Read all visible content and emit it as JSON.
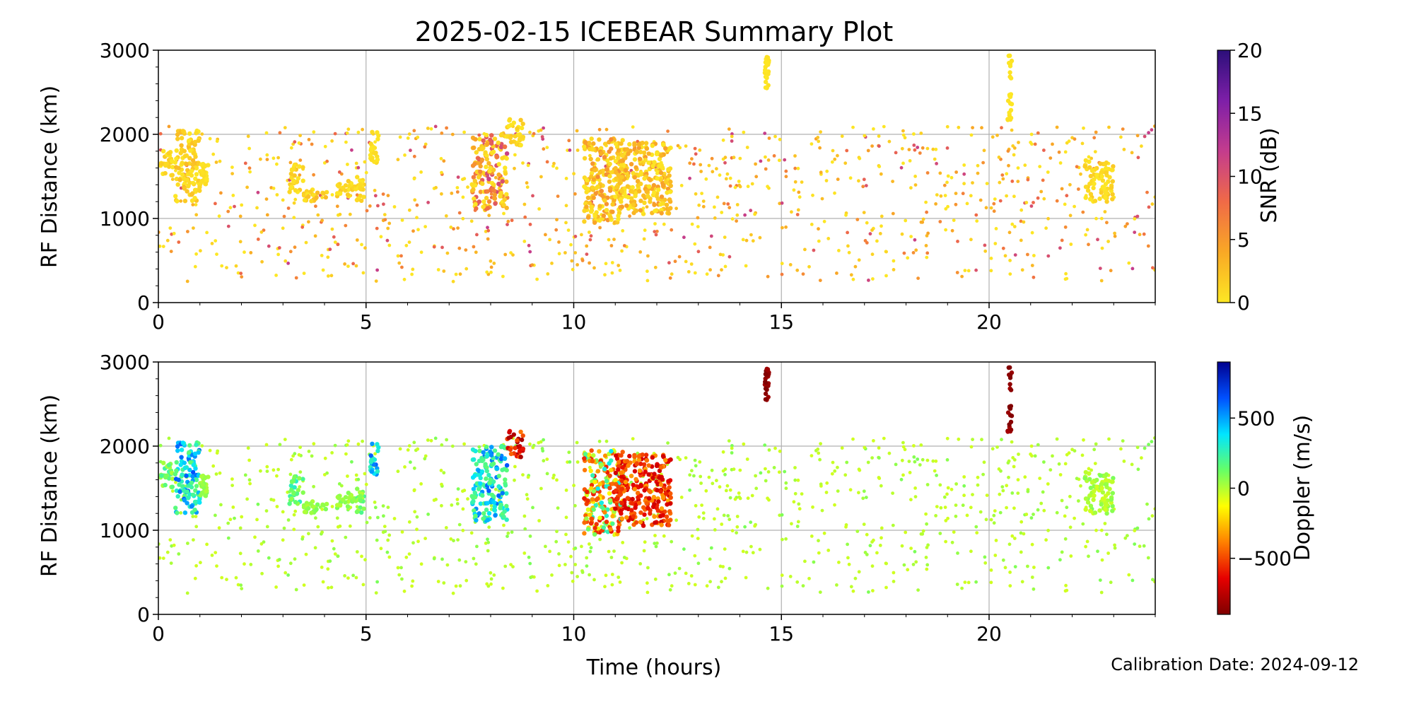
{
  "figure": {
    "title": "2025-02-15 ICEBEAR Summary Plot",
    "xlabel": "Time (hours)",
    "calibration_note": "Calibration Date: 2024-09-12"
  },
  "chart_data": [
    {
      "type": "scatter",
      "panel": "top",
      "xlim": [
        0,
        24
      ],
      "ylim": [
        0,
        3000
      ],
      "x_ticks": [
        0,
        5,
        10,
        15,
        20
      ],
      "y_ticks": [
        0,
        1000,
        2000,
        3000
      ],
      "xlabel": "",
      "ylabel": "RF Distance (km)",
      "grid": true,
      "color_variable": "SNR (dB)",
      "colorbar": {
        "label": "SNR (dB)",
        "range": [
          0,
          20
        ],
        "ticks": [
          0,
          5,
          10,
          15,
          20
        ],
        "colormap": [
          "#fde724",
          "#f9a825",
          "#f06a47",
          "#c43c8d",
          "#7e1fa8",
          "#2c0f7a"
        ]
      },
      "clusters": [
        {
          "x": [
            0.05,
            0.35
          ],
          "y": [
            1500,
            1800
          ],
          "c": [
            0,
            2
          ]
        },
        {
          "x": [
            0.4,
            1.0
          ],
          "y": [
            1200,
            2050
          ],
          "c": [
            0,
            3
          ]
        },
        {
          "x": [
            1.0,
            1.2
          ],
          "y": [
            1350,
            1650
          ],
          "c": [
            0,
            1
          ]
        },
        {
          "x": [
            3.15,
            3.5
          ],
          "y": [
            1300,
            1650
          ],
          "c": [
            0,
            2
          ]
        },
        {
          "x": [
            3.5,
            4.1
          ],
          "y": [
            1200,
            1350
          ],
          "c": [
            0,
            3
          ]
        },
        {
          "x": [
            4.3,
            4.75
          ],
          "y": [
            1250,
            1450
          ],
          "c": [
            0,
            2
          ]
        },
        {
          "x": [
            4.75,
            5.0
          ],
          "y": [
            1200,
            1500
          ],
          "c": [
            0,
            2
          ]
        },
        {
          "x": [
            5.1,
            5.3
          ],
          "y": [
            1650,
            2050
          ],
          "c": [
            0,
            1
          ]
        },
        {
          "x": [
            7.55,
            8.4
          ],
          "y": [
            1100,
            2000
          ],
          "c": [
            0,
            12
          ]
        },
        {
          "x": [
            8.4,
            8.8
          ],
          "y": [
            1850,
            2200
          ],
          "c": [
            0,
            2
          ]
        },
        {
          "x": [
            10.25,
            11.2
          ],
          "y": [
            950,
            1950
          ],
          "c": [
            0,
            6
          ]
        },
        {
          "x": [
            11.0,
            12.35
          ],
          "y": [
            1050,
            1900
          ],
          "c": [
            0,
            5
          ]
        },
        {
          "x": [
            14.6,
            14.7
          ],
          "y": [
            2550,
            2920
          ],
          "c": [
            0,
            0.5
          ]
        },
        {
          "x": [
            20.45,
            20.55
          ],
          "y": [
            2150,
            2950
          ],
          "c": [
            0,
            0.5
          ]
        },
        {
          "x": [
            22.3,
            23.0
          ],
          "y": [
            1200,
            1700
          ],
          "c": [
            0,
            2
          ]
        }
      ],
      "scatter_points": {
        "count": 950,
        "x_range": [
          0,
          24
        ],
        "y_range": [
          250,
          2100
        ],
        "c_range": [
          0,
          12
        ]
      }
    },
    {
      "type": "scatter",
      "panel": "bottom",
      "xlim": [
        0,
        24
      ],
      "ylim": [
        0,
        3000
      ],
      "x_ticks": [
        0,
        5,
        10,
        15,
        20
      ],
      "y_ticks": [
        0,
        1000,
        2000,
        3000
      ],
      "xlabel": "Time (hours)",
      "ylabel": "RF Distance (km)",
      "grid": true,
      "color_variable": "Doppler (m/s)",
      "colorbar": {
        "label": "Doppler (m/s)",
        "range": [
          -900,
          900
        ],
        "ticks": [
          -500,
          0,
          500
        ],
        "colormap": [
          "#7f0000",
          "#e60000",
          "#ff8000",
          "#ffff00",
          "#66ff66",
          "#00e5ff",
          "#0050ff",
          "#00008f"
        ]
      },
      "clusters": [
        {
          "x": [
            0.05,
            0.35
          ],
          "y": [
            1500,
            1800
          ],
          "c": [
            0,
            250
          ]
        },
        {
          "x": [
            0.4,
            1.0
          ],
          "y": [
            1200,
            2050
          ],
          "c": [
            150,
            650
          ]
        },
        {
          "x": [
            1.0,
            1.2
          ],
          "y": [
            1350,
            1650
          ],
          "c": [
            0,
            100
          ]
        },
        {
          "x": [
            3.15,
            3.5
          ],
          "y": [
            1300,
            1650
          ],
          "c": [
            50,
            300
          ]
        },
        {
          "x": [
            3.5,
            4.1
          ],
          "y": [
            1200,
            1350
          ],
          "c": [
            0,
            100
          ]
        },
        {
          "x": [
            4.3,
            4.75
          ],
          "y": [
            1250,
            1450
          ],
          "c": [
            0,
            100
          ]
        },
        {
          "x": [
            4.75,
            5.0
          ],
          "y": [
            1200,
            1500
          ],
          "c": [
            0,
            250
          ]
        },
        {
          "x": [
            5.1,
            5.3
          ],
          "y": [
            1650,
            2050
          ],
          "c": [
            250,
            650
          ]
        },
        {
          "x": [
            7.55,
            8.4
          ],
          "y": [
            1100,
            2000
          ],
          "c": [
            150,
            650
          ]
        },
        {
          "x": [
            8.4,
            8.8
          ],
          "y": [
            1850,
            2200
          ],
          "c": [
            -800,
            -400
          ]
        },
        {
          "x": [
            10.25,
            11.2
          ],
          "y": [
            950,
            1950
          ],
          "c": [
            -600,
            400
          ]
        },
        {
          "x": [
            11.0,
            12.35
          ],
          "y": [
            1050,
            1900
          ],
          "c": [
            -700,
            -300
          ]
        },
        {
          "x": [
            14.6,
            14.7
          ],
          "y": [
            2550,
            2920
          ],
          "c": [
            -900,
            -800
          ]
        },
        {
          "x": [
            20.45,
            20.55
          ],
          "y": [
            2150,
            2950
          ],
          "c": [
            -900,
            -800
          ]
        },
        {
          "x": [
            22.3,
            23.0
          ],
          "y": [
            1200,
            1700
          ],
          "c": [
            -50,
            100
          ]
        }
      ],
      "scatter_points": {
        "count": 950,
        "x_range": [
          0,
          24
        ],
        "y_range": [
          250,
          2100
        ],
        "c_range": [
          -50,
          100
        ]
      }
    }
  ]
}
